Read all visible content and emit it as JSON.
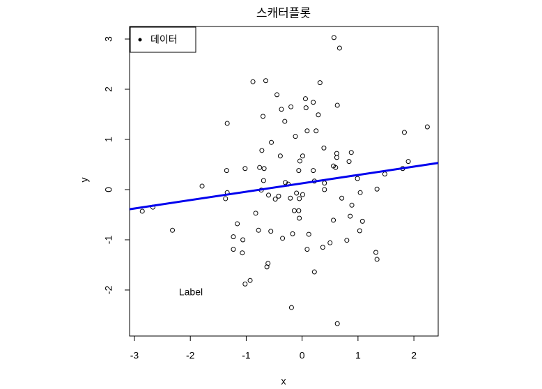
{
  "chart_data": {
    "type": "scatter",
    "title": "스캐터플롯",
    "x_label": "x",
    "y_label": "y",
    "x": [
      0.57,
      0.67,
      -0.88,
      -0.65,
      0.32,
      -0.45,
      0.06,
      0.2,
      -0.2,
      -0.37,
      0.07,
      0.63,
      0.29,
      -0.7,
      -1.34,
      -0.31,
      0.09,
      0.25,
      1.83,
      2.24,
      -0.12,
      -0.55,
      0.39,
      -0.72,
      0.62,
      0.88,
      -0.39,
      0.01,
      0.62,
      -0.04,
      0.84,
      1.9,
      -0.76,
      -0.68,
      -1.02,
      0.56,
      0.6,
      -1.35,
      -0.06,
      0.2,
      1.48,
      1.8,
      0.99,
      -0.69,
      -0.3,
      -0.25,
      0.22,
      0.4,
      -1.79,
      -0.73,
      1.34,
      0.4,
      -1.34,
      1.04,
      -0.1,
      -0.6,
      0.01,
      -0.42,
      -0.21,
      -0.05,
      -0.48,
      -1.37,
      0.71,
      -2.67,
      -2.86,
      0.89,
      -0.14,
      -0.06,
      -0.83,
      0.86,
      -0.05,
      0.56,
      1.08,
      -1.16,
      -2.32,
      -0.78,
      -0.56,
      1.03,
      -0.17,
      0.12,
      -1.23,
      -0.35,
      -1.06,
      0.8,
      0.5,
      0.37,
      0.09,
      -1.23,
      -1.07,
      1.32,
      1.34,
      -0.61,
      -0.63,
      0.22,
      -0.93,
      -1.02,
      -0.19,
      0.63
    ],
    "y": [
      3.03,
      2.82,
      2.15,
      2.17,
      2.13,
      1.89,
      1.81,
      1.74,
      1.65,
      1.6,
      1.63,
      1.68,
      1.49,
      1.46,
      1.32,
      1.36,
      1.17,
      1.17,
      1.14,
      1.25,
      1.06,
      0.94,
      0.83,
      0.78,
      0.72,
      0.74,
      0.67,
      0.67,
      0.64,
      0.57,
      0.56,
      0.56,
      0.44,
      0.42,
      0.42,
      0.47,
      0.44,
      0.38,
      0.38,
      0.38,
      0.31,
      0.42,
      0.22,
      0.18,
      0.14,
      0.11,
      0.17,
      0.13,
      0.07,
      -0.01,
      0.01,
      0.0,
      -0.06,
      -0.06,
      -0.07,
      -0.11,
      -0.1,
      -0.13,
      -0.17,
      -0.18,
      -0.19,
      -0.18,
      -0.17,
      -0.35,
      -0.43,
      -0.31,
      -0.42,
      -0.42,
      -0.47,
      -0.53,
      -0.57,
      -0.61,
      -0.63,
      -0.68,
      -0.81,
      -0.81,
      -0.83,
      -0.82,
      -0.88,
      -0.89,
      -0.94,
      -0.97,
      -1.0,
      -1.01,
      -1.06,
      -1.15,
      -1.19,
      -1.19,
      -1.26,
      -1.25,
      -1.39,
      -1.47,
      -1.54,
      -1.64,
      -1.81,
      -1.88,
      -2.35,
      -2.67
    ],
    "regression": {
      "intercept": 0.125,
      "slope": 0.167,
      "color": "#0000ee"
    },
    "xlim": [
      -3.087,
      2.435
    ],
    "ylim": [
      -2.917,
      3.25
    ],
    "xticks": [
      -3,
      -2,
      -1,
      0,
      1,
      2
    ],
    "yticks": [
      -2,
      -1,
      0,
      1,
      2,
      3
    ],
    "legend": {
      "label": "데이터",
      "position": "topleft"
    },
    "annotations": [
      {
        "text": "Label",
        "x": -1.99,
        "y": -2.05
      }
    ]
  }
}
